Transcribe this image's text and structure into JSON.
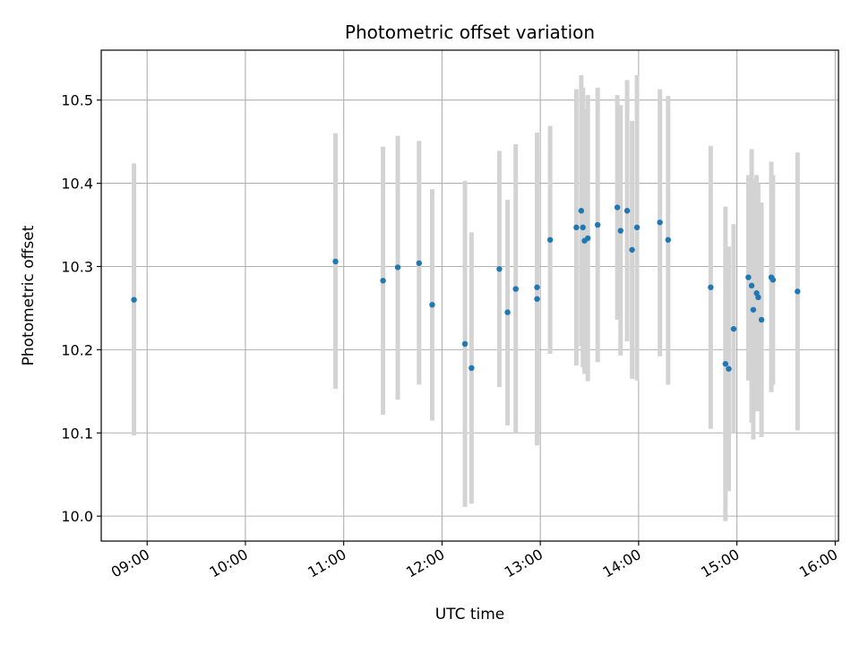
{
  "chart_data": {
    "type": "scatter",
    "title": "Photometric offset variation",
    "xlabel": "UTC time",
    "ylabel": "Photometric offset",
    "xlim": [
      "08:32",
      "16:02"
    ],
    "ylim": [
      9.97,
      10.56
    ],
    "x_ticks": [
      "09:00",
      "10:00",
      "11:00",
      "12:00",
      "13:00",
      "14:00",
      "15:00",
      "16:00"
    ],
    "y_ticks": [
      "10.0",
      "10.1",
      "10.2",
      "10.3",
      "10.4",
      "10.5"
    ],
    "grid": true,
    "point_color": "#1f77b4",
    "errorbar_color": "#d3d3d3",
    "points": [
      {
        "t": "08:52",
        "y": 10.26,
        "lo": 10.097,
        "hi": 10.424
      },
      {
        "t": "10:55",
        "y": 10.306,
        "lo": 10.153,
        "hi": 10.46
      },
      {
        "t": "11:24",
        "y": 10.283,
        "lo": 10.122,
        "hi": 10.444
      },
      {
        "t": "11:33",
        "y": 10.299,
        "lo": 10.14,
        "hi": 10.457
      },
      {
        "t": "11:46",
        "y": 10.304,
        "lo": 10.158,
        "hi": 10.451
      },
      {
        "t": "11:54",
        "y": 10.254,
        "lo": 10.115,
        "hi": 10.393
      },
      {
        "t": "12:14",
        "y": 10.207,
        "lo": 10.011,
        "hi": 10.403
      },
      {
        "t": "12:18",
        "y": 10.178,
        "lo": 10.015,
        "hi": 10.341
      },
      {
        "t": "12:35",
        "y": 10.297,
        "lo": 10.155,
        "hi": 10.439
      },
      {
        "t": "12:40",
        "y": 10.245,
        "lo": 10.109,
        "hi": 10.38
      },
      {
        "t": "12:45",
        "y": 10.273,
        "lo": 10.1,
        "hi": 10.447
      },
      {
        "t": "12:58",
        "y": 10.275,
        "lo": 10.089,
        "hi": 10.461
      },
      {
        "t": "12:58",
        "y": 10.261,
        "lo": 10.085,
        "hi": 10.437
      },
      {
        "t": "13:06",
        "y": 10.332,
        "lo": 10.195,
        "hi": 10.469
      },
      {
        "t": "13:22",
        "y": 10.347,
        "lo": 10.181,
        "hi": 10.513
      },
      {
        "t": "13:25",
        "y": 10.367,
        "lo": 10.204,
        "hi": 10.53
      },
      {
        "t": "13:26",
        "y": 10.347,
        "lo": 10.179,
        "hi": 10.515
      },
      {
        "t": "13:27",
        "y": 10.331,
        "lo": 10.171,
        "hi": 10.49
      },
      {
        "t": "13:29",
        "y": 10.334,
        "lo": 10.162,
        "hi": 10.506
      },
      {
        "t": "13:35",
        "y": 10.35,
        "lo": 10.185,
        "hi": 10.515
      },
      {
        "t": "13:47",
        "y": 10.371,
        "lo": 10.236,
        "hi": 10.506
      },
      {
        "t": "13:49",
        "y": 10.343,
        "lo": 10.193,
        "hi": 10.494
      },
      {
        "t": "13:53",
        "y": 10.367,
        "lo": 10.21,
        "hi": 10.524
      },
      {
        "t": "13:56",
        "y": 10.32,
        "lo": 10.165,
        "hi": 10.475
      },
      {
        "t": "13:59",
        "y": 10.347,
        "lo": 10.163,
        "hi": 10.53
      },
      {
        "t": "14:13",
        "y": 10.353,
        "lo": 10.192,
        "hi": 10.513
      },
      {
        "t": "14:18",
        "y": 10.332,
        "lo": 10.158,
        "hi": 10.505
      },
      {
        "t": "14:44",
        "y": 10.275,
        "lo": 10.105,
        "hi": 10.445
      },
      {
        "t": "14:53",
        "y": 10.183,
        "lo": 9.994,
        "hi": 10.372
      },
      {
        "t": "14:55",
        "y": 10.177,
        "lo": 10.03,
        "hi": 10.324
      },
      {
        "t": "14:58",
        "y": 10.225,
        "lo": 10.099,
        "hi": 10.351
      },
      {
        "t": "15:07",
        "y": 10.287,
        "lo": 10.163,
        "hi": 10.41
      },
      {
        "t": "15:09",
        "y": 10.277,
        "lo": 10.112,
        "hi": 10.441
      },
      {
        "t": "15:10",
        "y": 10.248,
        "lo": 10.092,
        "hi": 10.405
      },
      {
        "t": "15:12",
        "y": 10.268,
        "lo": 10.126,
        "hi": 10.41
      },
      {
        "t": "15:13",
        "y": 10.263,
        "lo": 10.126,
        "hi": 10.4
      },
      {
        "t": "15:15",
        "y": 10.236,
        "lo": 10.095,
        "hi": 10.377
      },
      {
        "t": "15:21",
        "y": 10.287,
        "lo": 10.149,
        "hi": 10.426
      },
      {
        "t": "15:22",
        "y": 10.284,
        "lo": 10.158,
        "hi": 10.41
      },
      {
        "t": "15:37",
        "y": 10.27,
        "lo": 10.103,
        "hi": 10.437
      }
    ]
  }
}
